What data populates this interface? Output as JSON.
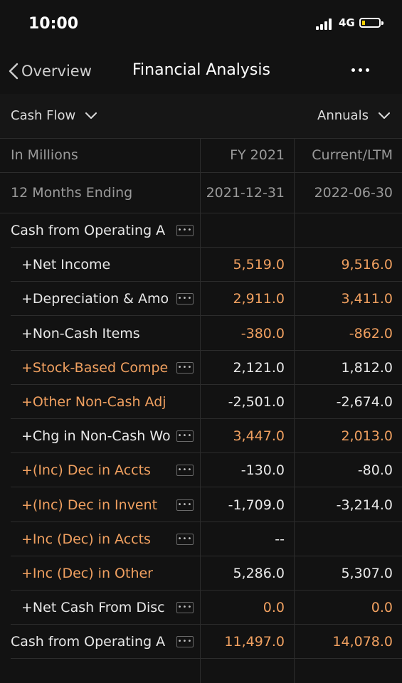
{
  "status": {
    "time": "10:00",
    "network": "4G"
  },
  "nav": {
    "back_label": "Overview",
    "title": "Financial Analysis"
  },
  "filters": {
    "statement": "Cash Flow",
    "period": "Annuals"
  },
  "table": {
    "units_label": "In Millions",
    "columns": [
      "FY 2021",
      "Current/LTM"
    ],
    "period_label": "12 Months Ending",
    "period_dates": [
      "2021-12-31",
      "2022-06-30"
    ],
    "rows": [
      {
        "label": "Cash from Operating A",
        "v1": "",
        "v2": "",
        "indent": false,
        "more": true,
        "color": "#e8e8e8",
        "color1": "#e8e8e8",
        "color2": "#e8e8e8"
      },
      {
        "label": "+Net Income",
        "v1": "5,519.0",
        "v2": "9,516.0",
        "indent": true,
        "more": false,
        "color": "#e8e8e8",
        "color1": "#f0a060",
        "color2": "#f0a060"
      },
      {
        "label": "+Depreciation & Amo",
        "v1": "2,911.0",
        "v2": "3,411.0",
        "indent": true,
        "more": true,
        "color": "#e8e8e8",
        "color1": "#f0a060",
        "color2": "#f0a060"
      },
      {
        "label": "+Non-Cash Items",
        "v1": "-380.0",
        "v2": "-862.0",
        "indent": true,
        "more": false,
        "color": "#e8e8e8",
        "color1": "#f0a060",
        "color2": "#f0a060"
      },
      {
        "label": "+Stock-Based Compe",
        "v1": "2,121.0",
        "v2": "1,812.0",
        "indent": true,
        "more": true,
        "color": "#f0a060",
        "color1": "#e8e8e8",
        "color2": "#e8e8e8"
      },
      {
        "label": "+Other Non-Cash Adj",
        "v1": "-2,501.0",
        "v2": "-2,674.0",
        "indent": true,
        "more": false,
        "color": "#f0a060",
        "color1": "#e8e8e8",
        "color2": "#e8e8e8"
      },
      {
        "label": "+Chg in Non-Cash Wo",
        "v1": "3,447.0",
        "v2": "2,013.0",
        "indent": true,
        "more": true,
        "color": "#e8e8e8",
        "color1": "#f0a060",
        "color2": "#f0a060"
      },
      {
        "label": "+(Inc) Dec in Accts",
        "v1": "-130.0",
        "v2": "-80.0",
        "indent": true,
        "more": true,
        "color": "#f0a060",
        "color1": "#e8e8e8",
        "color2": "#e8e8e8"
      },
      {
        "label": "+(Inc) Dec in Invent",
        "v1": "-1,709.0",
        "v2": "-3,214.0",
        "indent": true,
        "more": true,
        "color": "#f0a060",
        "color1": "#e8e8e8",
        "color2": "#e8e8e8"
      },
      {
        "label": "+Inc (Dec) in Accts",
        "v1": "--",
        "v2": "",
        "indent": true,
        "more": true,
        "color": "#f0a060",
        "color1": "#e8e8e8",
        "color2": "#e8e8e8"
      },
      {
        "label": "+Inc (Dec) in Other",
        "v1": "5,286.0",
        "v2": "5,307.0",
        "indent": true,
        "more": false,
        "color": "#f0a060",
        "color1": "#e8e8e8",
        "color2": "#e8e8e8"
      },
      {
        "label": "+Net Cash From Disc",
        "v1": "0.0",
        "v2": "0.0",
        "indent": true,
        "more": true,
        "color": "#e8e8e8",
        "color1": "#f0a060",
        "color2": "#f0a060"
      },
      {
        "label": "Cash from Operating A",
        "v1": "11,497.0",
        "v2": "14,078.0",
        "indent": false,
        "more": true,
        "color": "#e8e8e8",
        "color1": "#f0a060",
        "color2": "#f0a060"
      }
    ]
  },
  "colors": {
    "accent": "#f0a060",
    "background": "#121212"
  }
}
